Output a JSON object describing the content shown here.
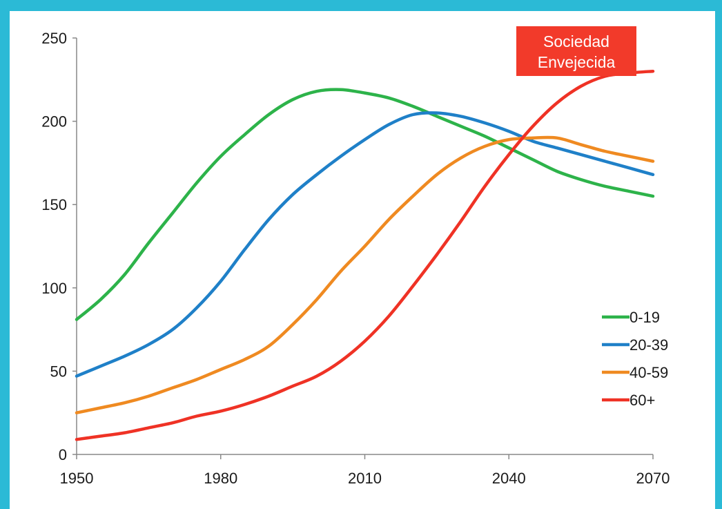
{
  "chart_data": {
    "type": "line",
    "title": "",
    "xlabel": "",
    "ylabel": "",
    "xlim": [
      1950,
      2070
    ],
    "ylim": [
      0,
      250
    ],
    "x_ticks": [
      "1950",
      "1980",
      "2010",
      "2040",
      "2070"
    ],
    "y_ticks": [
      "0",
      "50",
      "100",
      "150",
      "200",
      "250"
    ],
    "x": [
      1950,
      1955,
      1960,
      1965,
      1970,
      1975,
      1980,
      1985,
      1990,
      1995,
      2000,
      2005,
      2010,
      2015,
      2020,
      2025,
      2030,
      2035,
      2040,
      2045,
      2050,
      2055,
      2060,
      2065,
      2070
    ],
    "series": [
      {
        "name": "0-19",
        "color": "#2db34a",
        "values": [
          81,
          93,
          108,
          127,
          145,
          163,
          179,
          192,
          204,
          213,
          218,
          219,
          217,
          214,
          209,
          203,
          197,
          191,
          184,
          177,
          170,
          165,
          161,
          158,
          155
        ]
      },
      {
        "name": "20-39",
        "color": "#1f80c8",
        "values": [
          47,
          53,
          59,
          66,
          75,
          88,
          104,
          123,
          141,
          156,
          168,
          179,
          189,
          198,
          204,
          205,
          203,
          199,
          194,
          188,
          184,
          180,
          176,
          172,
          168
        ]
      },
      {
        "name": "40-59",
        "color": "#ef8a21",
        "values": [
          25,
          28,
          31,
          35,
          40,
          45,
          51,
          57,
          65,
          78,
          93,
          110,
          125,
          141,
          155,
          168,
          178,
          185,
          189,
          190,
          190,
          186,
          182,
          179,
          176
        ]
      },
      {
        "name": "60+",
        "color": "#ef3225",
        "values": [
          9,
          11,
          13,
          16,
          19,
          23,
          26,
          30,
          35,
          41,
          47,
          56,
          68,
          83,
          101,
          120,
          140,
          161,
          180,
          197,
          211,
          221,
          227,
          229,
          230
        ]
      }
    ],
    "legend": {
      "position": "bottom-right",
      "labels": [
        "0-19",
        "20-39",
        "40-59",
        "60+"
      ]
    },
    "annotation": {
      "lines": [
        "Sociedad",
        "Envejecida"
      ],
      "color": "#f23a2a"
    },
    "grid": false
  }
}
